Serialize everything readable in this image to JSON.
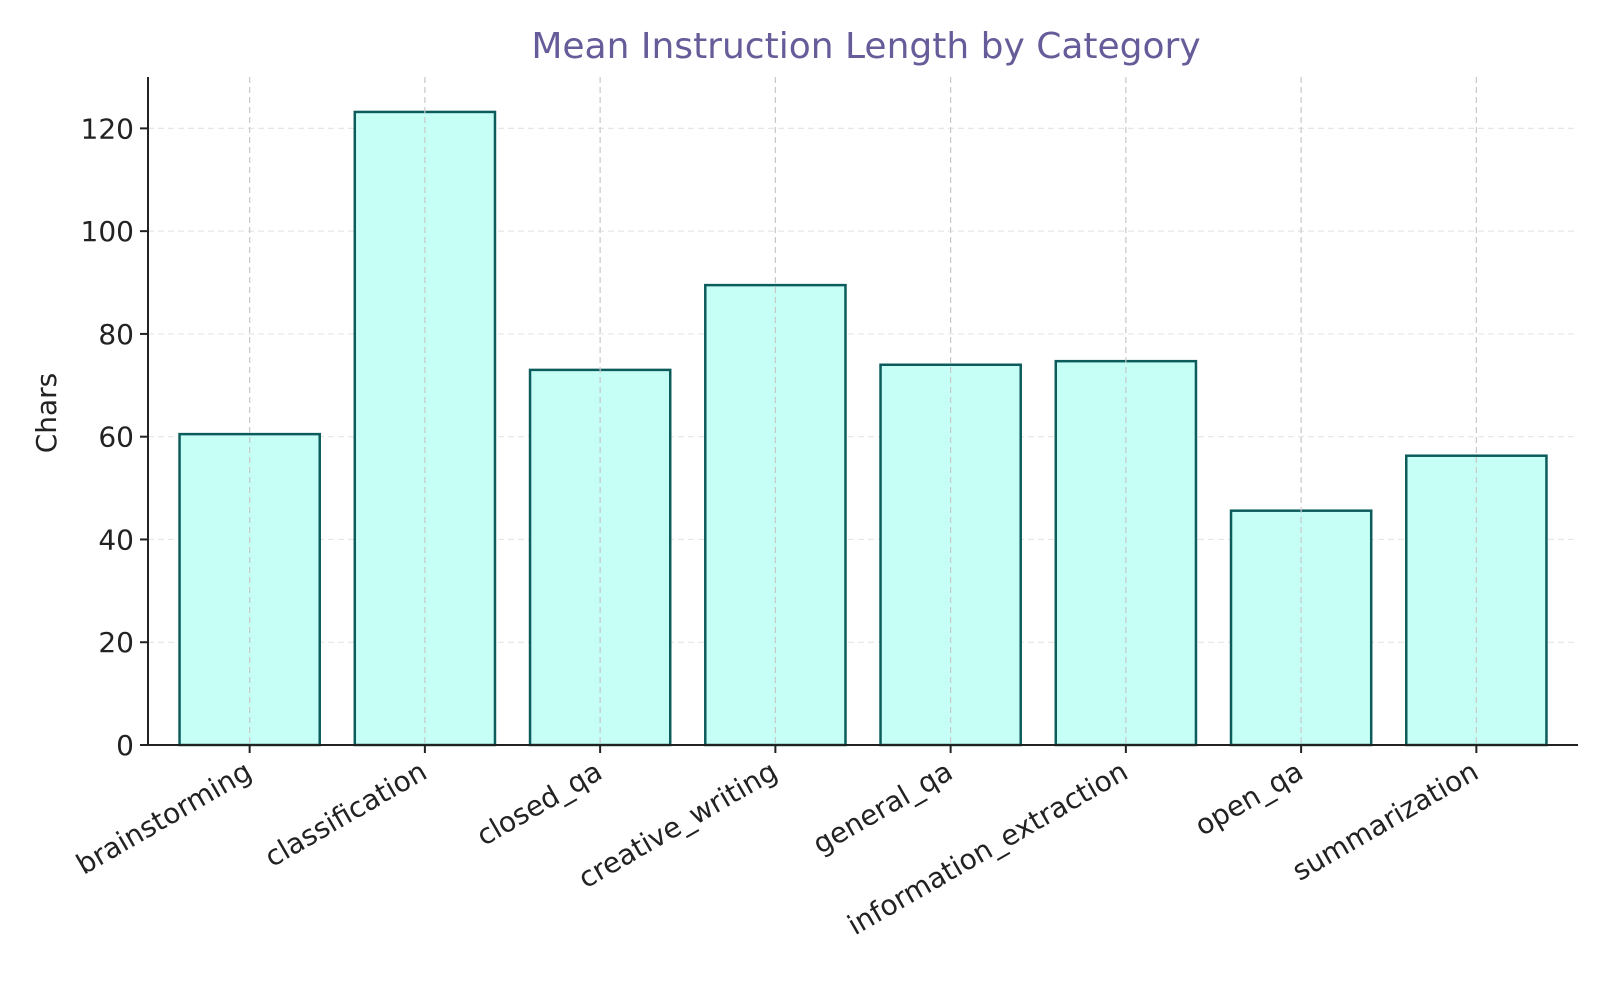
{
  "chart_data": {
    "type": "bar",
    "title": "Mean Instruction Length by Category",
    "xlabel": "",
    "ylabel": "Chars",
    "categories": [
      "brainstorming",
      "classification",
      "closed_qa",
      "creative_writing",
      "general_qa",
      "information_extraction",
      "open_qa",
      "summarization"
    ],
    "values": [
      60.5,
      123.2,
      73.0,
      89.5,
      74.0,
      74.7,
      45.6,
      56.3
    ],
    "ylim": [
      0,
      130
    ],
    "yticks": [
      0,
      20,
      40,
      60,
      80,
      100,
      120
    ],
    "grid": true,
    "colors": {
      "bar_fill": "#c6fff5",
      "bar_edge": "#0d5c5c",
      "title": "#665c99",
      "axis": "#222222",
      "grid_horizontal": "#e6e6e6",
      "grid_vertical": "#c8c8c8"
    }
  }
}
